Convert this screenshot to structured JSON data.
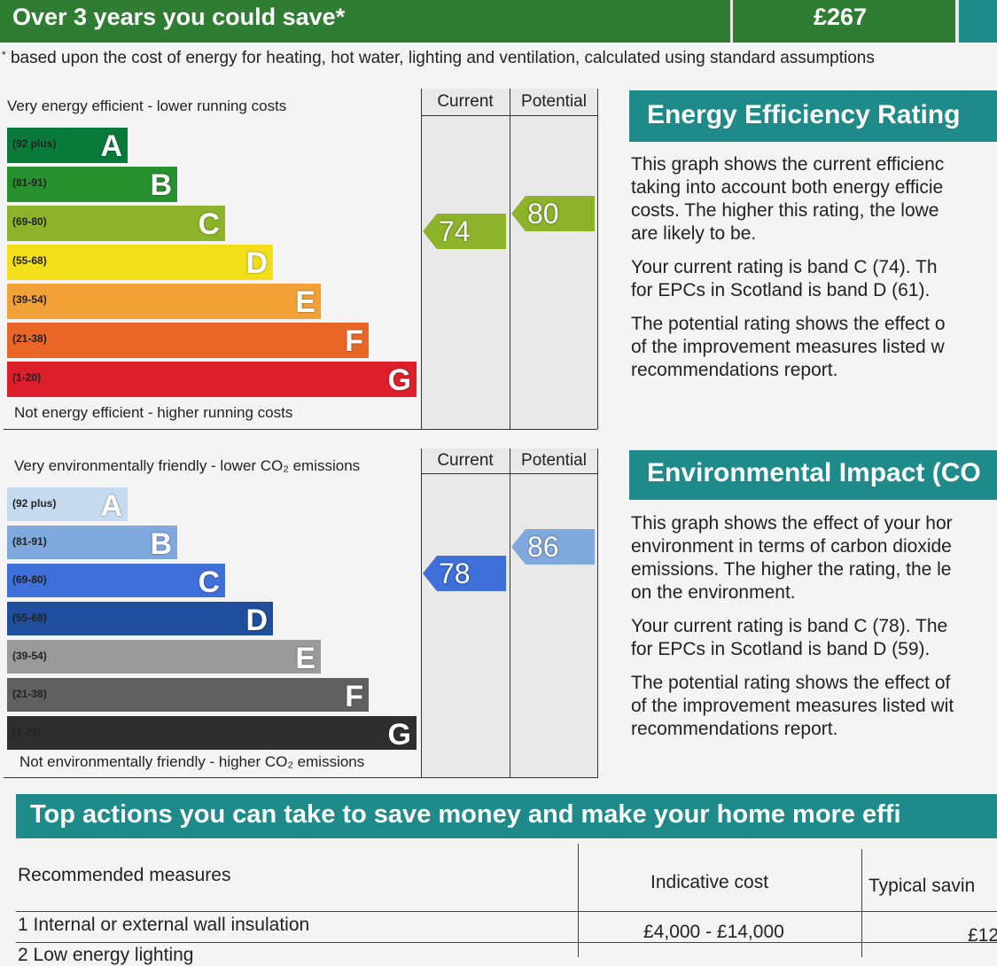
{
  "savings": {
    "text": "Over 3 years you could save*",
    "amount": "£267",
    "footnote_mark": "*",
    "footnote": "based upon the cost of energy for heating, hot water, lighting and ventilation, calculated using standard assumptions"
  },
  "efficiency_graph": {
    "top_label": "Very energy efficient - lower running costs",
    "bottom_label": "Not energy efficient - higher running costs",
    "current_header": "Current",
    "potential_header": "Potential",
    "bands": [
      {
        "range": "(92 plus)",
        "letter": "A",
        "color": "#0a7a3a"
      },
      {
        "range": "(81-91)",
        "letter": "B",
        "color": "#27902f"
      },
      {
        "range": "(69-80)",
        "letter": "C",
        "color": "#8db32a"
      },
      {
        "range": "(55-68)",
        "letter": "D",
        "color": "#f2de19"
      },
      {
        "range": "(39-54)",
        "letter": "E",
        "color": "#f2a137"
      },
      {
        "range": "(21-38)",
        "letter": "F",
        "color": "#ea6626"
      },
      {
        "range": "(1-20)",
        "letter": "G",
        "color": "#dc1f2a"
      }
    ],
    "current": "74",
    "potential": "80",
    "current_color": "#8db32a",
    "potential_color": "#8db32a"
  },
  "environment_graph": {
    "top_label": "Very environmentally friendly - lower CO₂ emissions",
    "bottom_label": "Not environmentally friendly - higher CO₂ emissions",
    "current_header": "Current",
    "potential_header": "Potential",
    "bands": [
      {
        "range": "(92 plus)",
        "letter": "A",
        "color": "#c6daf0"
      },
      {
        "range": "(81-91)",
        "letter": "B",
        "color": "#7fa8dc"
      },
      {
        "range": "(69-80)",
        "letter": "C",
        "color": "#3f6fd8"
      },
      {
        "range": "(55-68)",
        "letter": "D",
        "color": "#1f4f9c"
      },
      {
        "range": "(39-54)",
        "letter": "E",
        "color": "#9a9a9a"
      },
      {
        "range": "(21-38)",
        "letter": "F",
        "color": "#606060"
      },
      {
        "range": "(1-20)",
        "letter": "G",
        "color": "#2e2e2e"
      }
    ],
    "current": "78",
    "potential": "86",
    "current_color": "#3f6fd8",
    "potential_color": "#7fa8dc"
  },
  "efficiency_panel": {
    "heading": "Energy Efficiency Rating",
    "p1": "This graph shows the current efficiency of your home, taking into account both energy efficiency and fuel costs. The higher this rating, the lower your fuel bills are likely to be.",
    "p1_lines": [
      "This graph shows the current efficienc",
      "taking into account both energy efficie",
      "costs. The higher this rating, the lowe",
      "are likely to be."
    ],
    "p2_lines": [
      "Your current rating is band C (74). Th",
      "for EPCs in Scotland is band D (61)."
    ],
    "p3_lines": [
      "The potential rating shows the effect o",
      "of the improvement measures listed w",
      "recommendations report."
    ]
  },
  "environment_panel": {
    "heading": "Environmental Impact (CO",
    "p1_lines": [
      "This graph shows the effect of your hor",
      "environment in terms of carbon dioxide",
      "emissions. The higher the rating, the le",
      "on the environment."
    ],
    "p2_lines": [
      "Your current rating is band C (78). The",
      "for EPCs in Scotland is band D (59)."
    ],
    "p3_lines": [
      "The potential rating shows the effect of",
      "of the improvement measures listed wit",
      "recommendations report."
    ]
  },
  "actions": {
    "heading": "Top actions you can take to save money and make your home more effi",
    "col1": "Recommended measures",
    "col2": "Indicative cost",
    "col3": "Typical savin",
    "rows": [
      {
        "measure": "1 Internal or external wall insulation",
        "cost": "£4,000 - £14,000",
        "saving": "£12"
      },
      {
        "measure": "2 Low energy lighting",
        "cost": "",
        "saving": ""
      }
    ]
  }
}
